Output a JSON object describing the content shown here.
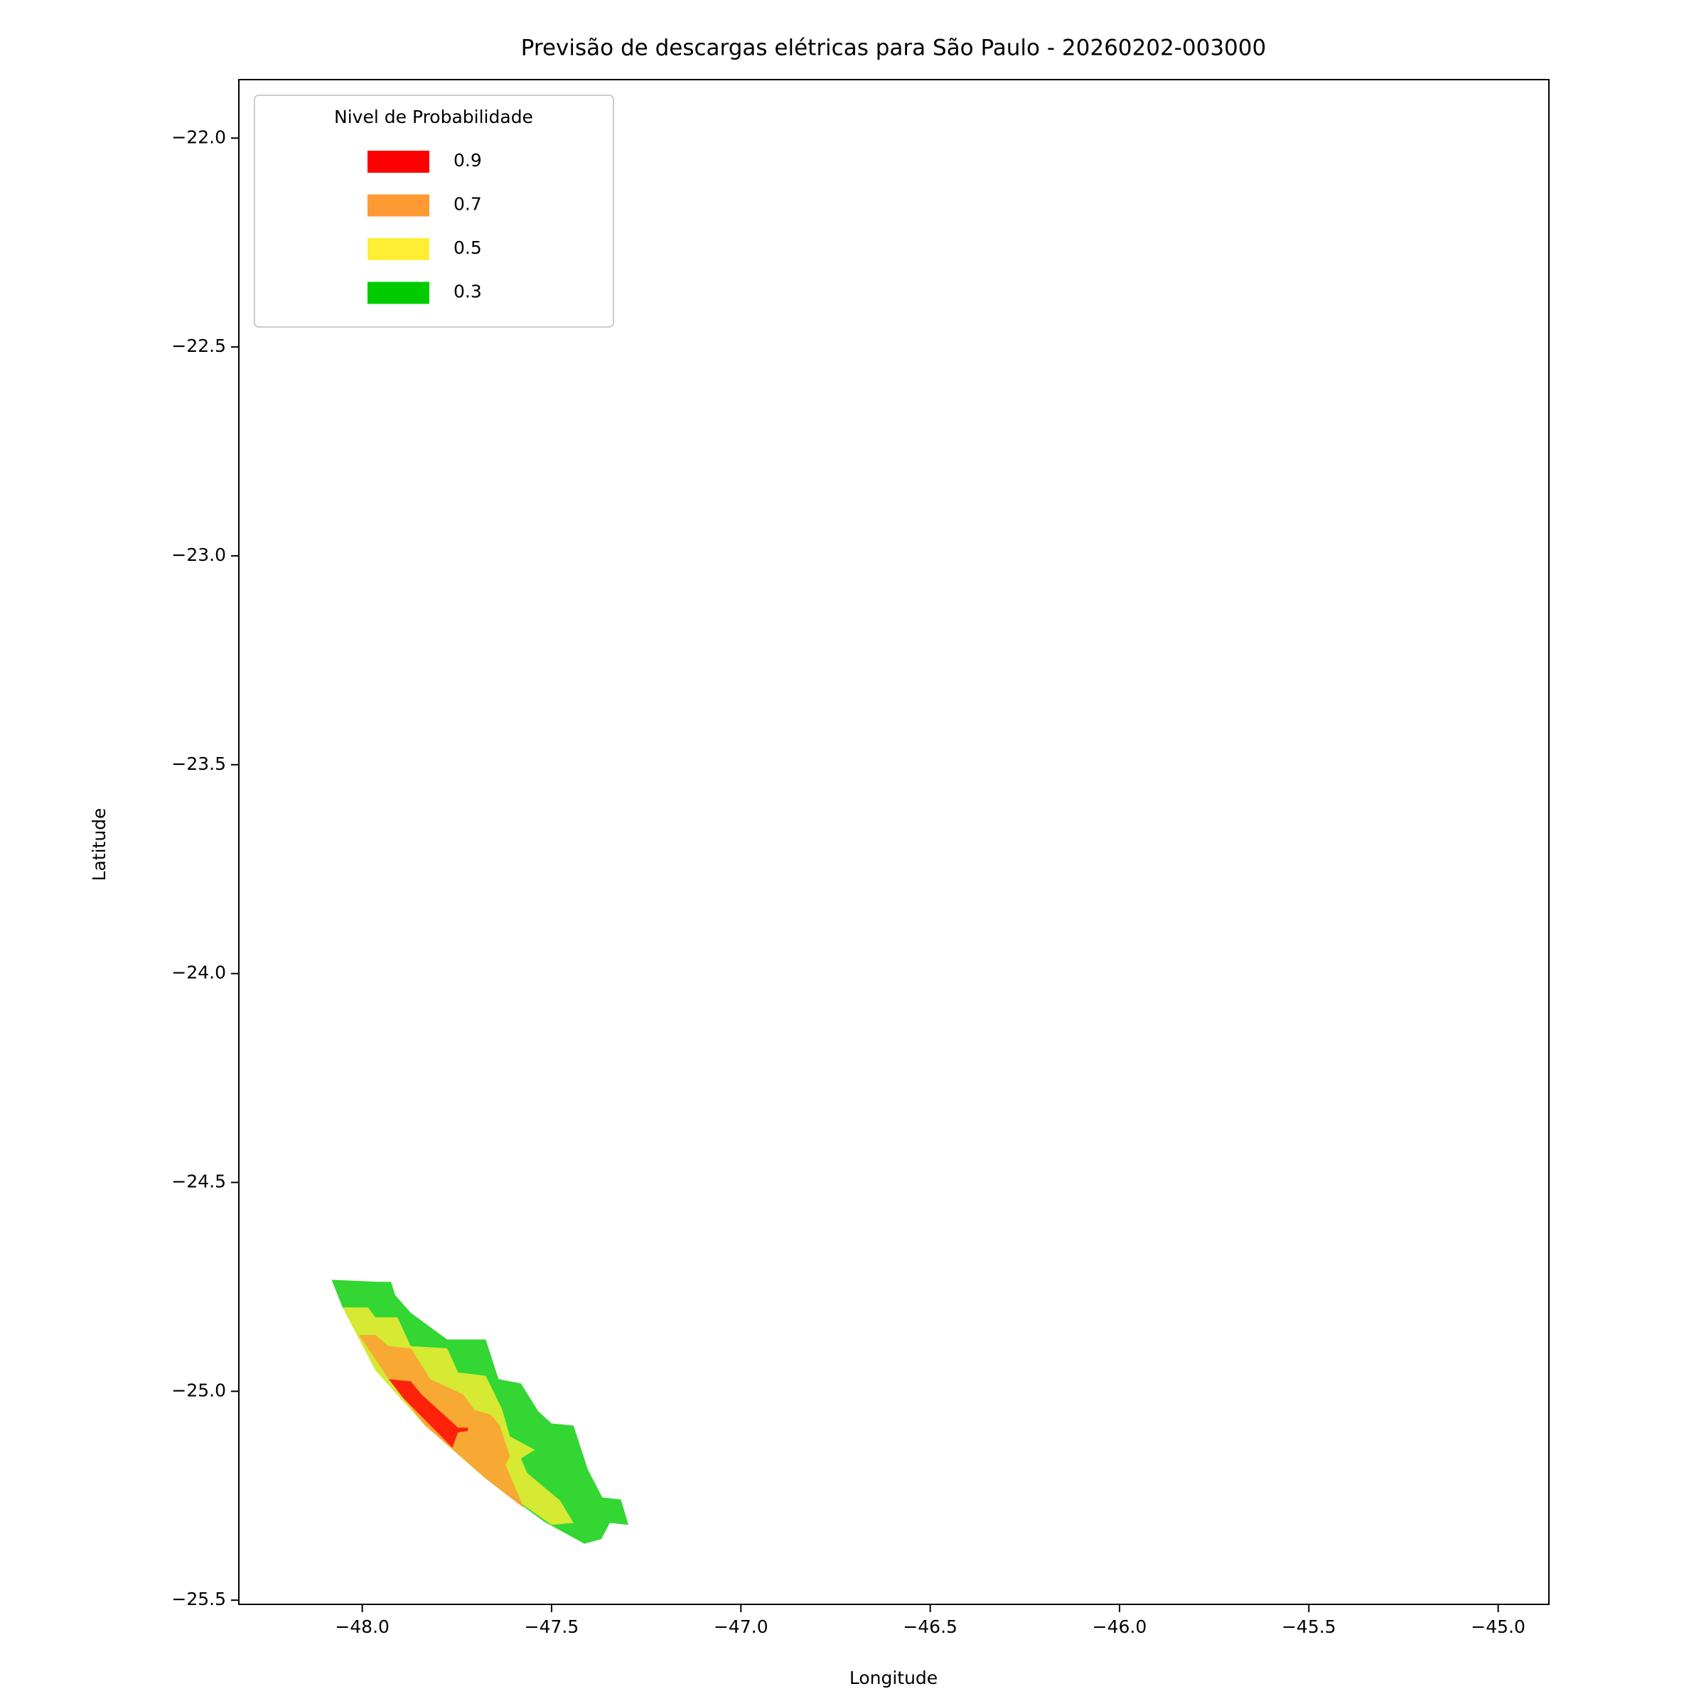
{
  "chart_data": {
    "type": "filled-contour",
    "title": "Previsão de descargas elétricas para São Paulo - 20260202-003000",
    "xlabel": "Longitude",
    "ylabel": "Latitude",
    "xlim": [
      -48.326,
      -44.866
    ],
    "ylim": [
      -25.51,
      -21.86
    ],
    "xticks": [
      {
        "value": -48.0,
        "label": "−48.0"
      },
      {
        "value": -47.5,
        "label": "−47.5"
      },
      {
        "value": -47.0,
        "label": "−47.0"
      },
      {
        "value": -46.5,
        "label": "−46.5"
      },
      {
        "value": -46.0,
        "label": "−46.0"
      },
      {
        "value": -45.5,
        "label": "−45.5"
      },
      {
        "value": -45.0,
        "label": "−45.0"
      }
    ],
    "yticks": [
      {
        "value": -22.0,
        "label": "−22.0"
      },
      {
        "value": -22.5,
        "label": "−22.5"
      },
      {
        "value": -23.0,
        "label": "−23.0"
      },
      {
        "value": -23.5,
        "label": "−23.5"
      },
      {
        "value": -24.0,
        "label": "−24.0"
      },
      {
        "value": -24.5,
        "label": "−24.5"
      },
      {
        "value": -25.0,
        "label": "−25.0"
      },
      {
        "value": -25.5,
        "label": "−25.5"
      }
    ],
    "legend_title": "Nivel de Probabilidade",
    "legend": "upper left",
    "fill_opacity": 0.8,
    "series": [
      {
        "name": "0.9",
        "color": "#ff0000",
        "x": [
          -47.93,
          -47.872,
          -47.843,
          -47.747,
          -47.721,
          -47.721,
          -47.747,
          -47.762,
          -47.834,
          -47.892
        ],
        "y": [
          -24.971,
          -24.976,
          -25.008,
          -25.087,
          -25.087,
          -25.095,
          -25.098,
          -25.135,
          -25.069,
          -25.016
        ]
      },
      {
        "name": "0.7",
        "color": "#ff9933",
        "x": [
          -48.009,
          -47.965,
          -47.93,
          -47.872,
          -47.82,
          -47.733,
          -47.703,
          -47.66,
          -47.637,
          -47.61,
          -47.622,
          -47.573,
          -47.674,
          -47.834,
          -47.93
        ],
        "y": [
          -24.865,
          -24.865,
          -24.892,
          -24.897,
          -24.971,
          -25.008,
          -25.045,
          -25.056,
          -25.082,
          -25.156,
          -25.175,
          -25.28,
          -25.209,
          -25.082,
          -24.971
        ]
      },
      {
        "name": "0.5",
        "color": "#ffee33",
        "x": [
          -48.052,
          -47.985,
          -47.965,
          -47.907,
          -47.872,
          -47.776,
          -47.747,
          -47.674,
          -47.631,
          -47.61,
          -47.544,
          -47.581,
          -47.564,
          -47.477,
          -47.442,
          -47.5,
          -47.674,
          -47.834,
          -47.965
        ],
        "y": [
          -24.799,
          -24.799,
          -24.823,
          -24.823,
          -24.892,
          -24.897,
          -24.955,
          -24.963,
          -25.042,
          -25.108,
          -25.14,
          -25.161,
          -25.196,
          -25.262,
          -25.315,
          -25.32,
          -25.209,
          -25.082,
          -24.95
        ]
      },
      {
        "name": "0.3",
        "color": "#00cc00",
        "x": [
          -48.081,
          -47.956,
          -47.924,
          -47.913,
          -47.872,
          -47.776,
          -47.674,
          -47.64,
          -47.581,
          -47.535,
          -47.5,
          -47.442,
          -47.404,
          -47.366,
          -47.317,
          -47.297,
          -47.346,
          -47.369,
          -47.413,
          -47.52,
          -47.674,
          -47.834,
          -47.965,
          -48.052
        ],
        "y": [
          -24.733,
          -24.738,
          -24.738,
          -24.77,
          -24.812,
          -24.876,
          -24.876,
          -24.971,
          -24.981,
          -25.048,
          -25.077,
          -25.082,
          -25.188,
          -25.254,
          -25.259,
          -25.32,
          -25.315,
          -25.354,
          -25.365,
          -25.312,
          -25.209,
          -25.082,
          -24.95,
          -24.799
        ]
      }
    ]
  }
}
